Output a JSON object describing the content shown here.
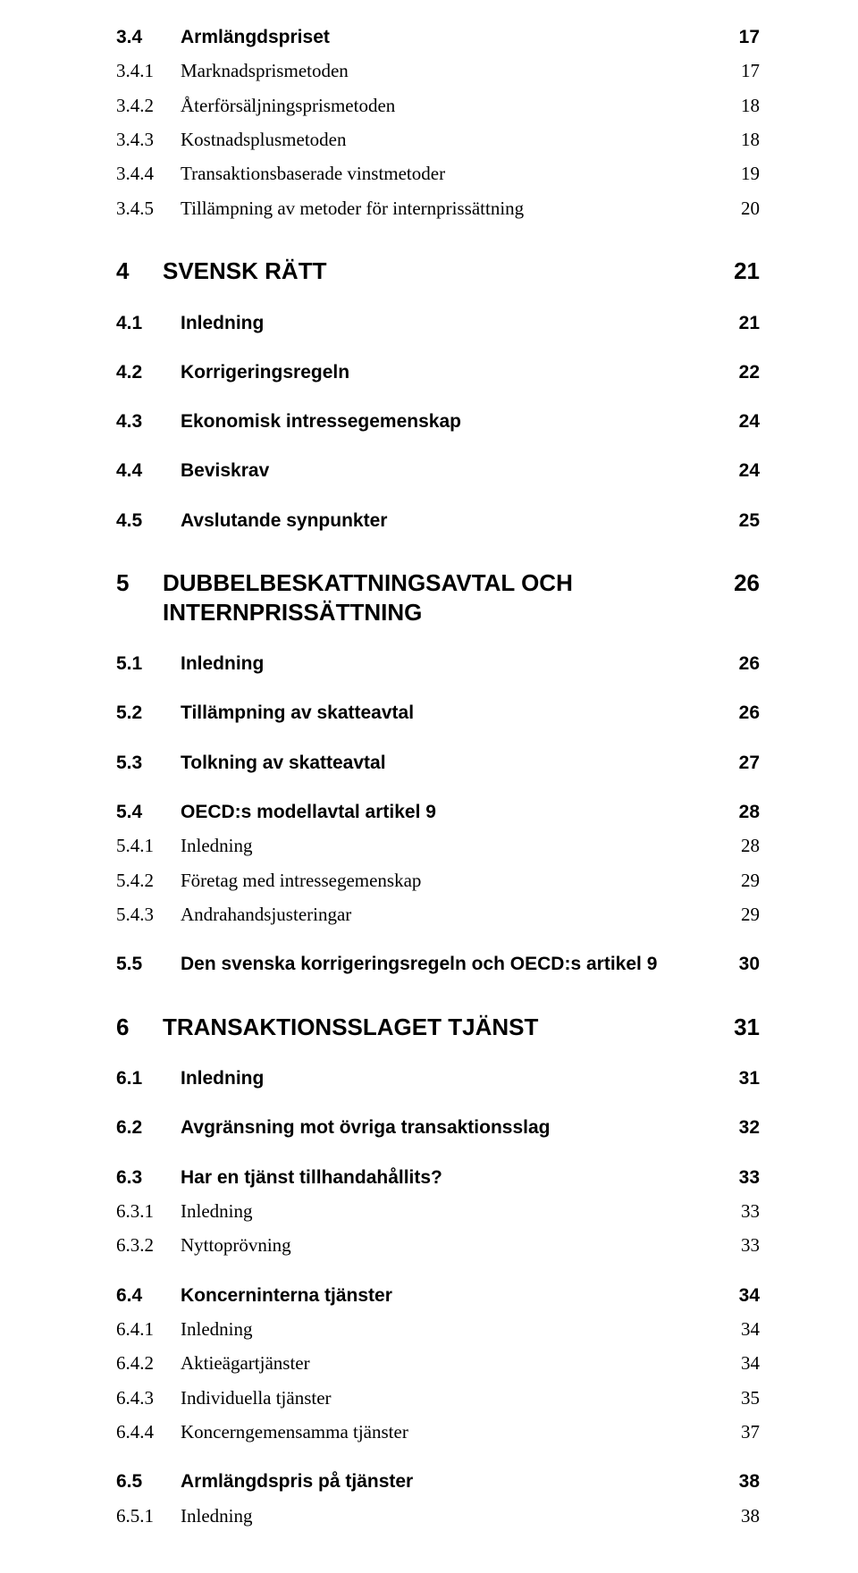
{
  "toc": [
    {
      "type": "h2",
      "num": "3.4",
      "text": "Armlängdspriset",
      "page": "17"
    },
    {
      "type": "h3",
      "num": "3.4.1",
      "text": "Marknadsprismetoden",
      "page": "17"
    },
    {
      "type": "h3",
      "num": "3.4.2",
      "text": "Återförsäljningsprismetoden",
      "page": "18"
    },
    {
      "type": "h3",
      "num": "3.4.3",
      "text": "Kostnadsplusmetoden",
      "page": "18"
    },
    {
      "type": "h3",
      "num": "3.4.4",
      "text": "Transaktionsbaserade vinstmetoder",
      "page": "19"
    },
    {
      "type": "h3",
      "num": "3.4.5",
      "text": "Tillämpning av metoder för internprissättning",
      "page": "20"
    },
    {
      "type": "gap-lg"
    },
    {
      "type": "h1",
      "num": "4",
      "text": "SVENSK RÄTT",
      "page": "21"
    },
    {
      "type": "gap-md"
    },
    {
      "type": "h2",
      "num": "4.1",
      "text": "Inledning",
      "page": "21"
    },
    {
      "type": "gap-md"
    },
    {
      "type": "h2",
      "num": "4.2",
      "text": "Korrigeringsregeln",
      "page": "22"
    },
    {
      "type": "gap-md"
    },
    {
      "type": "h2",
      "num": "4.3",
      "text": "Ekonomisk intressegemenskap",
      "page": "24"
    },
    {
      "type": "gap-md"
    },
    {
      "type": "h2",
      "num": "4.4",
      "text": "Beviskrav",
      "page": "24"
    },
    {
      "type": "gap-md"
    },
    {
      "type": "h2",
      "num": "4.5",
      "text": "Avslutande synpunkter",
      "page": "25"
    },
    {
      "type": "gap-lg"
    },
    {
      "type": "h1",
      "num": "5",
      "text": "DUBBELBESKATTNINGSAVTAL OCH INTERNPRISSÄTTNING",
      "page": "26"
    },
    {
      "type": "gap-md"
    },
    {
      "type": "h2",
      "num": "5.1",
      "text": "Inledning",
      "page": "26"
    },
    {
      "type": "gap-md"
    },
    {
      "type": "h2",
      "num": "5.2",
      "text": "Tillämpning av skatteavtal",
      "page": "26"
    },
    {
      "type": "gap-md"
    },
    {
      "type": "h2",
      "num": "5.3",
      "text": "Tolkning av skatteavtal",
      "page": "27"
    },
    {
      "type": "gap-md"
    },
    {
      "type": "h2",
      "num": "5.4",
      "text": "OECD:s modellavtal artikel 9",
      "page": "28"
    },
    {
      "type": "h3",
      "num": "5.4.1",
      "text": "Inledning",
      "page": "28"
    },
    {
      "type": "h3",
      "num": "5.4.2",
      "text": "Företag med intressegemenskap",
      "page": "29"
    },
    {
      "type": "h3",
      "num": "5.4.3",
      "text": "Andrahandsjusteringar",
      "page": "29"
    },
    {
      "type": "gap-md"
    },
    {
      "type": "h2",
      "num": "5.5",
      "text": "Den svenska korrigeringsregeln och OECD:s artikel 9",
      "page": "30"
    },
    {
      "type": "gap-lg"
    },
    {
      "type": "h1",
      "num": "6",
      "text": "TRANSAKTIONSSLAGET TJÄNST",
      "page": "31"
    },
    {
      "type": "gap-md"
    },
    {
      "type": "h2",
      "num": "6.1",
      "text": "Inledning",
      "page": "31"
    },
    {
      "type": "gap-md"
    },
    {
      "type": "h2",
      "num": "6.2",
      "text": "Avgränsning mot övriga transaktionsslag",
      "page": "32"
    },
    {
      "type": "gap-md"
    },
    {
      "type": "h2",
      "num": "6.3",
      "text": "Har en tjänst tillhandahållits?",
      "page": "33"
    },
    {
      "type": "h3",
      "num": "6.3.1",
      "text": "Inledning",
      "page": "33"
    },
    {
      "type": "h3",
      "num": "6.3.2",
      "text": "Nyttoprövning",
      "page": "33"
    },
    {
      "type": "gap-md"
    },
    {
      "type": "h2",
      "num": "6.4",
      "text": "Koncerninterna tjänster",
      "page": "34"
    },
    {
      "type": "h3",
      "num": "6.4.1",
      "text": "Inledning",
      "page": "34"
    },
    {
      "type": "h3",
      "num": "6.4.2",
      "text": "Aktieägartjänster",
      "page": "34"
    },
    {
      "type": "h3",
      "num": "6.4.3",
      "text": "Individuella tjänster",
      "page": "35"
    },
    {
      "type": "h3",
      "num": "6.4.4",
      "text": "Koncerngemensamma tjänster",
      "page": "37"
    },
    {
      "type": "gap-md"
    },
    {
      "type": "h2",
      "num": "6.5",
      "text": "Armlängdspris på tjänster",
      "page": "38"
    },
    {
      "type": "h3",
      "num": "6.5.1",
      "text": "Inledning",
      "page": "38"
    }
  ]
}
